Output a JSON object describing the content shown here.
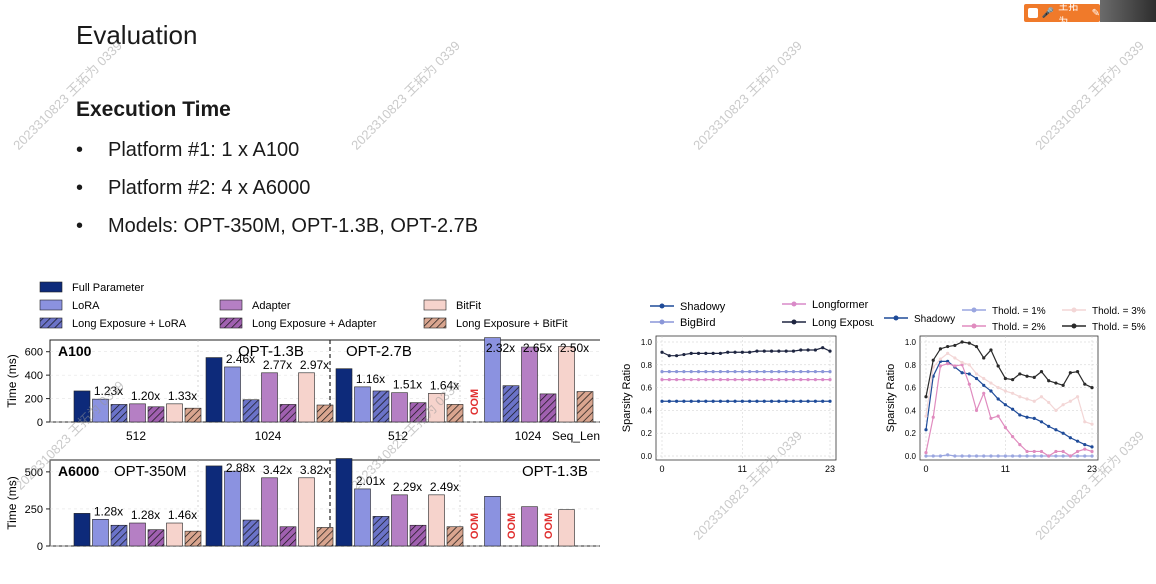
{
  "slide": {
    "title": "Evaluation",
    "section": "Execution Time",
    "bullet_glyph": "•",
    "bullets": [
      "Platform #1: 1 x A100",
      "Platform #2: 4 x A6000",
      "Models: OPT-350M, OPT-1.3B, OPT-2.7B"
    ]
  },
  "meeting": {
    "name": "王拓为"
  },
  "watermark": {
    "text": "2023310823 王拓为 0339"
  },
  "chart_data": [
    {
      "type": "bar",
      "ylabel": "Time (ms)",
      "legend": {
        "placement": "top",
        "entries": [
          "Full Parameter",
          "LoRA",
          "Long Exposure + LoRA",
          "Adapter",
          "Long Exposure + Adapter",
          "BitFit",
          "Long Exposure + BitFit"
        ]
      },
      "colors": [
        "#0d2a7a",
        "#8b92e0",
        "#6b73c8",
        "#b57fc4",
        "#a060b0",
        "#f6d3cc",
        "#d9a58f"
      ],
      "panels": [
        {
          "platform": "A100",
          "ylim": [
            0,
            700
          ],
          "yticks": [
            0,
            200,
            400,
            600
          ],
          "xlabel_right": "Seq_Len",
          "groups": [
            {
              "model": "",
              "seq_len": "512",
              "values": [
                265,
                195,
                150,
                155,
                130,
                155,
                118
              ],
              "speedups": [
                "1.23x",
                "1.20x",
                "1.33x"
              ]
            },
            {
              "model": "OPT-1.3B",
              "seq_len": "1024",
              "values": [
                550,
                470,
                190,
                420,
                150,
                420,
                145
              ],
              "speedups": [
                "2.46x",
                "2.77x",
                "2.97x"
              ]
            },
            {
              "model": "OPT-2.7B",
              "seq_len": "512",
              "values": [
                455,
                300,
                265,
                250,
                165,
                245,
                150
              ],
              "speedups": [
                "1.16x",
                "1.51x",
                "1.64x"
              ]
            },
            {
              "model": "",
              "seq_len": "1024",
              "values": [
                null,
                720,
                310,
                640,
                240,
                645,
                260
              ],
              "speedups": [
                "2.32x",
                "2.65x",
                "2.50x"
              ],
              "oom": [
                "OOM"
              ]
            }
          ]
        },
        {
          "platform": "A6000",
          "ylim": [
            0,
            580
          ],
          "yticks": [
            0,
            250,
            500
          ],
          "groups": [
            {
              "model": "OPT-350M",
              "seq_len": "",
              "values": [
                220,
                180,
                140,
                155,
                110,
                155,
                100
              ],
              "speedups": [
                "1.28x",
                "1.28x",
                "1.46x"
              ]
            },
            {
              "model": "",
              "seq_len": "",
              "values": [
                540,
                505,
                175,
                460,
                130,
                460,
                125
              ],
              "speedups": [
                "2.88x",
                "3.42x",
                "3.82x"
              ]
            },
            {
              "model": "",
              "seq_len": "",
              "values": [
                590,
                385,
                200,
                345,
                140,
                345,
                130
              ],
              "speedups": [
                "2.01x",
                "2.29x",
                "2.49x"
              ]
            },
            {
              "model": "OPT-1.3B",
              "seq_len": "",
              "values": [
                null,
                335,
                null,
                265,
                null,
                245,
                null
              ],
              "speedups": [],
              "oom": [
                "OOM",
                "OOM",
                "OOM"
              ]
            }
          ]
        }
      ]
    },
    {
      "type": "line",
      "ylabel": "Sparsity Ratio",
      "x": [
        0,
        1,
        2,
        3,
        4,
        5,
        6,
        7,
        8,
        9,
        10,
        11,
        12,
        13,
        14,
        15,
        16,
        17,
        18,
        19,
        20,
        21,
        22,
        23
      ],
      "xticks": [
        0,
        11,
        23
      ],
      "ylim": [
        0,
        1.0
      ],
      "yticks": [
        "0.0",
        "0.2",
        "0.4",
        "0.6",
        "0.8",
        "1.0"
      ],
      "grid": true,
      "legend": {
        "placement": "top"
      },
      "series": [
        {
          "name": "Shadowy",
          "color": "#1f4b99",
          "values": [
            0.48,
            0.48,
            0.48,
            0.48,
            0.48,
            0.48,
            0.48,
            0.48,
            0.48,
            0.48,
            0.48,
            0.48,
            0.48,
            0.48,
            0.48,
            0.48,
            0.48,
            0.48,
            0.48,
            0.48,
            0.48,
            0.48,
            0.48,
            0.48
          ]
        },
        {
          "name": "Longformer",
          "color": "#d98ac8",
          "values": [
            0.67,
            0.67,
            0.67,
            0.67,
            0.67,
            0.67,
            0.67,
            0.67,
            0.67,
            0.67,
            0.67,
            0.67,
            0.67,
            0.67,
            0.67,
            0.67,
            0.67,
            0.67,
            0.67,
            0.67,
            0.67,
            0.67,
            0.67,
            0.67
          ]
        },
        {
          "name": "BigBird",
          "color": "#8a96d8",
          "values": [
            0.74,
            0.74,
            0.74,
            0.74,
            0.74,
            0.74,
            0.74,
            0.74,
            0.74,
            0.74,
            0.74,
            0.74,
            0.74,
            0.74,
            0.74,
            0.74,
            0.74,
            0.74,
            0.74,
            0.74,
            0.74,
            0.74,
            0.74,
            0.74
          ]
        },
        {
          "name": "Long Exposure",
          "color": "#1e2540",
          "values": [
            0.91,
            0.88,
            0.88,
            0.89,
            0.9,
            0.9,
            0.9,
            0.9,
            0.9,
            0.91,
            0.91,
            0.91,
            0.91,
            0.92,
            0.92,
            0.92,
            0.92,
            0.92,
            0.92,
            0.93,
            0.93,
            0.93,
            0.95,
            0.92
          ]
        }
      ]
    },
    {
      "type": "line",
      "ylabel": "Sparsity Ratio",
      "x": [
        0,
        1,
        2,
        3,
        4,
        5,
        6,
        7,
        8,
        9,
        10,
        11,
        12,
        13,
        14,
        15,
        16,
        17,
        18,
        19,
        20,
        21,
        22,
        23
      ],
      "xticks": [
        0,
        11,
        23
      ],
      "ylim": [
        0,
        1.0
      ],
      "yticks": [
        "0.0",
        "0.2",
        "0.4",
        "0.6",
        "0.8",
        "1.0"
      ],
      "grid": true,
      "legend": {
        "placement": "top"
      },
      "series": [
        {
          "name": "Shadowy",
          "color": "#1f4b99",
          "values": [
            0.23,
            0.7,
            0.83,
            0.83,
            0.78,
            0.73,
            0.72,
            0.68,
            0.62,
            0.57,
            0.5,
            0.45,
            0.41,
            0.36,
            0.34,
            0.33,
            0.3,
            0.26,
            0.23,
            0.2,
            0.16,
            0.13,
            0.1,
            0.08
          ]
        },
        {
          "name": "Thold. = 1%",
          "color": "#9aa6e0",
          "values": [
            0.0,
            0.0,
            0.0,
            0.01,
            0.0,
            0.0,
            0.0,
            0.0,
            0.0,
            0.0,
            0.0,
            0.0,
            0.0,
            0.0,
            0.0,
            0.0,
            0.0,
            0.0,
            0.0,
            0.0,
            0.0,
            0.0,
            0.0,
            0.0
          ]
        },
        {
          "name": "Thold. = 2%",
          "color": "#e08cbf",
          "values": [
            0.03,
            0.34,
            0.79,
            0.81,
            0.79,
            0.8,
            0.63,
            0.4,
            0.55,
            0.33,
            0.35,
            0.25,
            0.17,
            0.1,
            0.04,
            0.04,
            0.04,
            0.0,
            0.04,
            0.04,
            0.0,
            0.04,
            0.06,
            0.04
          ]
        },
        {
          "name": "Thold. = 3%",
          "color": "#f3d6d6",
          "values": [
            0.35,
            0.78,
            0.85,
            0.9,
            0.86,
            0.82,
            0.8,
            0.72,
            0.68,
            0.64,
            0.6,
            0.57,
            0.55,
            0.52,
            0.5,
            0.48,
            0.52,
            0.47,
            0.4,
            0.45,
            0.48,
            0.52,
            0.3,
            0.28
          ]
        },
        {
          "name": "Thold. = 5%",
          "color": "#2a2a2a",
          "values": [
            0.52,
            0.84,
            0.94,
            0.96,
            0.97,
            1.0,
            0.99,
            0.96,
            0.86,
            0.93,
            0.79,
            0.68,
            0.67,
            0.72,
            0.7,
            0.69,
            0.74,
            0.66,
            0.64,
            0.62,
            0.73,
            0.74,
            0.63,
            0.6
          ]
        }
      ]
    }
  ]
}
